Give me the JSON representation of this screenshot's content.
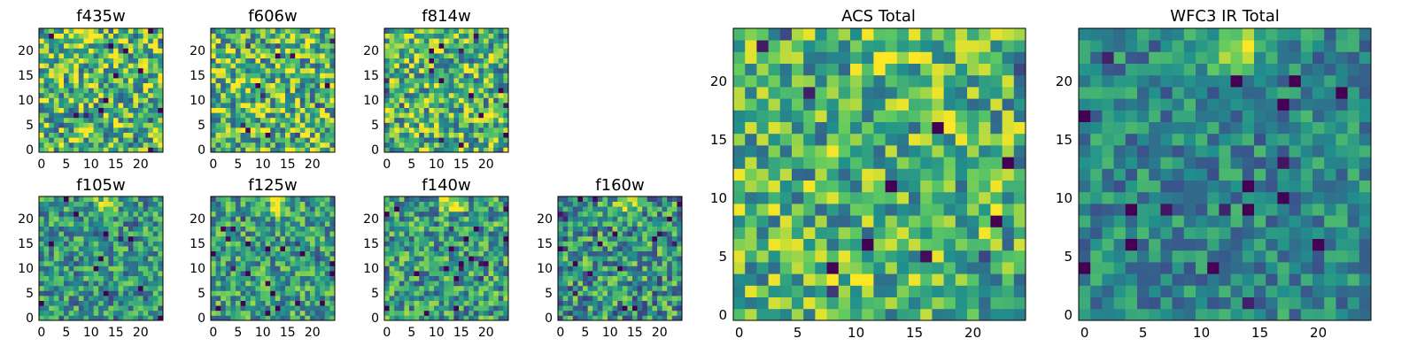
{
  "chart_data": {
    "type": "heatmap",
    "grid_size": 25,
    "colormap": "viridis",
    "colormap_stops": [
      "#440154",
      "#3b528b",
      "#21918c",
      "#5ec962",
      "#fde725"
    ],
    "panels": [
      {
        "id": "f435w",
        "title": "f435w",
        "xticks": [
          "0",
          "5",
          "10",
          "15",
          "20"
        ],
        "yticks": [
          "0",
          "5",
          "10",
          "15",
          "20"
        ],
        "xlim": [
          0,
          25
        ],
        "ylim": [
          0,
          25
        ],
        "noise": 0.4,
        "bias": 0.68,
        "hotspot": [
          13,
          23,
          0.0
        ],
        "seed": 11
      },
      {
        "id": "f606w",
        "title": "f606w",
        "xticks": [
          "0",
          "5",
          "10",
          "15",
          "20"
        ],
        "yticks": [
          "0",
          "5",
          "10",
          "15",
          "20"
        ],
        "xlim": [
          0,
          25
        ],
        "ylim": [
          0,
          25
        ],
        "noise": 0.4,
        "bias": 0.68,
        "hotspot": [
          13,
          23,
          0.0
        ],
        "seed": 23
      },
      {
        "id": "f814w",
        "title": "f814w",
        "xticks": [
          "0",
          "5",
          "10",
          "15",
          "20"
        ],
        "yticks": [
          "0",
          "5",
          "10",
          "15",
          "20"
        ],
        "xlim": [
          0,
          25
        ],
        "ylim": [
          0,
          25
        ],
        "noise": 0.38,
        "bias": 0.66,
        "hotspot": [
          13,
          23,
          0.15
        ],
        "seed": 37
      },
      {
        "id": "f105w",
        "title": "f105w",
        "xticks": [
          "0",
          "5",
          "10",
          "15",
          "20"
        ],
        "yticks": [
          "0",
          "5",
          "10",
          "15",
          "20"
        ],
        "xlim": [
          0,
          25
        ],
        "ylim": [
          0,
          25
        ],
        "noise": 0.3,
        "bias": 0.52,
        "hotspot": [
          13,
          23,
          0.45
        ],
        "seed": 41
      },
      {
        "id": "f125w",
        "title": "f125w",
        "xticks": [
          "0",
          "5",
          "10",
          "15",
          "20"
        ],
        "yticks": [
          "0",
          "5",
          "10",
          "15",
          "20"
        ],
        "xlim": [
          0,
          25
        ],
        "ylim": [
          0,
          25
        ],
        "noise": 0.3,
        "bias": 0.56,
        "hotspot": [
          13,
          23,
          0.45
        ],
        "seed": 53
      },
      {
        "id": "f140w",
        "title": "f140w",
        "xticks": [
          "0",
          "5",
          "10",
          "15",
          "20"
        ],
        "yticks": [
          "0",
          "5",
          "10",
          "15",
          "20"
        ],
        "xlim": [
          0,
          25
        ],
        "ylim": [
          0,
          25
        ],
        "noise": 0.32,
        "bias": 0.55,
        "hotspot": [
          13,
          23,
          0.45
        ],
        "seed": 67
      },
      {
        "id": "f160w",
        "title": "f160w",
        "xticks": [
          "0",
          "5",
          "10",
          "15",
          "20"
        ],
        "yticks": [
          "0",
          "5",
          "10",
          "15",
          "20"
        ],
        "xlim": [
          0,
          25
        ],
        "ylim": [
          0,
          25
        ],
        "noise": 0.34,
        "bias": 0.52,
        "hotspot": [
          13,
          23,
          0.45
        ],
        "seed": 79
      },
      {
        "id": "acs-total",
        "title": "ACS Total",
        "xticks": [
          "0",
          "5",
          "10",
          "15",
          "20"
        ],
        "yticks": [
          "0",
          "5",
          "10",
          "15",
          "20"
        ],
        "xlim": [
          0,
          25
        ],
        "ylim": [
          0,
          25
        ],
        "noise": 0.34,
        "bias": 0.66,
        "hotspot": [
          13,
          23,
          0.2
        ],
        "seed": 97
      },
      {
        "id": "wfc3-ir-total",
        "title": "WFC3 IR Total",
        "xticks": [
          "0",
          "5",
          "10",
          "15",
          "20"
        ],
        "yticks": [
          "0",
          "5",
          "10",
          "15",
          "20"
        ],
        "xlim": [
          0,
          25
        ],
        "ylim": [
          0,
          25
        ],
        "noise": 0.22,
        "bias": 0.46,
        "hotspot": [
          13,
          23,
          0.55
        ],
        "seed": 113
      }
    ]
  }
}
